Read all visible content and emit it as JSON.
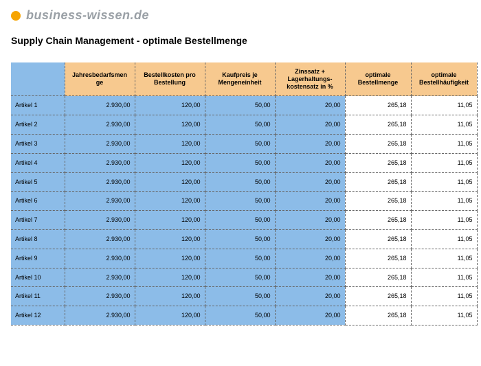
{
  "logo": {
    "text": "business-wissen.de",
    "dot_color": "#f6a400",
    "text_color": "#9aa0a6"
  },
  "title": "Supply Chain Management - optimale Bestellmenge",
  "colors": {
    "header_input_bg": "#f7c98f",
    "header_output_bg": "#f7c98f",
    "data_input_bg": "#8cbce8",
    "data_output_bg": "#ffffff",
    "rowhead_bg": "#8cbce8",
    "border": "#666666"
  },
  "columns": [
    {
      "key": "rowhead",
      "label": "",
      "kind": "rowhead"
    },
    {
      "key": "c1",
      "label": "Jahresbedarfsmen\nge",
      "kind": "input"
    },
    {
      "key": "c2",
      "label": "Bestellkosten pro\nBestellung",
      "kind": "input"
    },
    {
      "key": "c3",
      "label": "Kaufpreis je\nMengeneinheit",
      "kind": "input"
    },
    {
      "key": "c4",
      "label": "Zinssatz +\nLagerhaltungs-\nkostensatz in %",
      "kind": "input"
    },
    {
      "key": "c5",
      "label": "optimale\nBestellmenge",
      "kind": "output"
    },
    {
      "key": "c6",
      "label": "optimale\nBestellhäufigkeit",
      "kind": "output"
    }
  ],
  "rows": [
    {
      "label": "Artikel 1",
      "c1": "2.930,00",
      "c2": "120,00",
      "c3": "50,00",
      "c4": "20,00",
      "c5": "265,18",
      "c6": "11,05"
    },
    {
      "label": "Artikel 2",
      "c1": "2.930,00",
      "c2": "120,00",
      "c3": "50,00",
      "c4": "20,00",
      "c5": "265,18",
      "c6": "11,05"
    },
    {
      "label": "Artikel 3",
      "c1": "2.930,00",
      "c2": "120,00",
      "c3": "50,00",
      "c4": "20,00",
      "c5": "265,18",
      "c6": "11,05"
    },
    {
      "label": "Artikel 4",
      "c1": "2.930,00",
      "c2": "120,00",
      "c3": "50,00",
      "c4": "20,00",
      "c5": "265,18",
      "c6": "11,05"
    },
    {
      "label": "Artikel 5",
      "c1": "2.930,00",
      "c2": "120,00",
      "c3": "50,00",
      "c4": "20,00",
      "c5": "265,18",
      "c6": "11,05"
    },
    {
      "label": "Artikel 6",
      "c1": "2.930,00",
      "c2": "120,00",
      "c3": "50,00",
      "c4": "20,00",
      "c5": "265,18",
      "c6": "11,05"
    },
    {
      "label": "Artikel 7",
      "c1": "2.930,00",
      "c2": "120,00",
      "c3": "50,00",
      "c4": "20,00",
      "c5": "265,18",
      "c6": "11,05"
    },
    {
      "label": "Artikel 8",
      "c1": "2.930,00",
      "c2": "120,00",
      "c3": "50,00",
      "c4": "20,00",
      "c5": "265,18",
      "c6": "11,05"
    },
    {
      "label": "Artikel 9",
      "c1": "2.930,00",
      "c2": "120,00",
      "c3": "50,00",
      "c4": "20,00",
      "c5": "265,18",
      "c6": "11,05"
    },
    {
      "label": "Artikel 10",
      "c1": "2.930,00",
      "c2": "120,00",
      "c3": "50,00",
      "c4": "20,00",
      "c5": "265,18",
      "c6": "11,05"
    },
    {
      "label": "Artikel 11",
      "c1": "2.930,00",
      "c2": "120,00",
      "c3": "50,00",
      "c4": "20,00",
      "c5": "265,18",
      "c6": "11,05"
    },
    {
      "label": "Artikel 12",
      "c1": "2.930,00",
      "c2": "120,00",
      "c3": "50,00",
      "c4": "20,00",
      "c5": "265,18",
      "c6": "11,05"
    }
  ]
}
